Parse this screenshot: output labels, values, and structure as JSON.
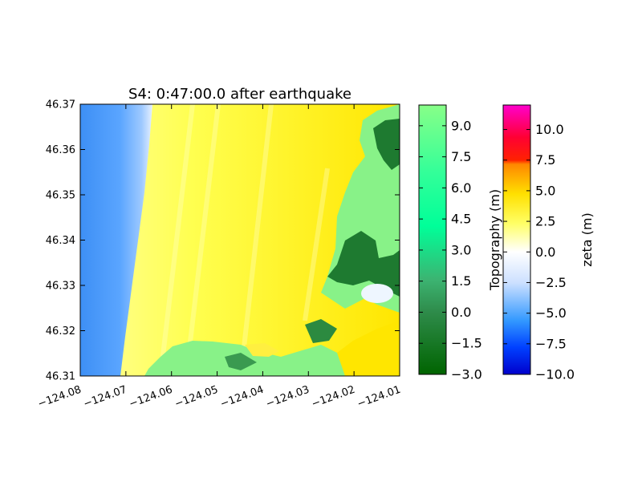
{
  "chart_data": {
    "type": "heatmap",
    "title": "S4: 0:47:00.0 after earthquake",
    "xlabel": "",
    "ylabel": "",
    "xlim": [
      -124.08,
      -124.01
    ],
    "ylim": [
      46.31,
      46.37
    ],
    "x_ticks": [
      "−124.08",
      "−124.07",
      "−124.06",
      "−124.05",
      "−124.04",
      "−124.03",
      "−124.02",
      "−124.01"
    ],
    "x_tick_values": [
      -124.08,
      -124.07,
      -124.06,
      -124.05,
      -124.04,
      -124.03,
      -124.02,
      -124.01
    ],
    "y_ticks": [
      "46.37",
      "46.36",
      "46.35",
      "46.34",
      "46.33",
      "46.32",
      "46.31"
    ],
    "y_tick_values": [
      46.37,
      46.36,
      46.35,
      46.34,
      46.33,
      46.32,
      46.31
    ],
    "grid": false,
    "colorbars": [
      {
        "label": "Topography (m)",
        "range": [
          -3.0,
          10.0
        ],
        "ticks": [
          "−3.0",
          "−1.5",
          "0.0",
          "1.5",
          "3.0",
          "4.5",
          "6.0",
          "7.5",
          "9.0"
        ],
        "tick_values": [
          -3.0,
          -1.5,
          0.0,
          1.5,
          3.0,
          4.5,
          6.0,
          7.5,
          9.0
        ],
        "colors": [
          "#006400",
          "#00ff99",
          "#88ff88"
        ]
      },
      {
        "label": "zeta (m)",
        "range": [
          -10.0,
          12.0
        ],
        "ticks": [
          "−10.0",
          "−7.5",
          "−5.0",
          "−2.5",
          "0.0",
          "2.5",
          "5.0",
          "7.5",
          "10.0"
        ],
        "tick_values": [
          -10.0,
          -7.5,
          -5.0,
          -2.5,
          0.0,
          2.5,
          5.0,
          7.5,
          10.0
        ],
        "colors": [
          "#0000cc",
          "#0080ff",
          "#ffffff",
          "#ffff00",
          "#ff6600",
          "#ff0000",
          "#ff00ff"
        ]
      }
    ],
    "regions": {
      "ocean_color": "#4499ff",
      "flood_color": "#ffef20",
      "land_color": "#88f288",
      "dark_land_color": "#1e7a30"
    }
  }
}
